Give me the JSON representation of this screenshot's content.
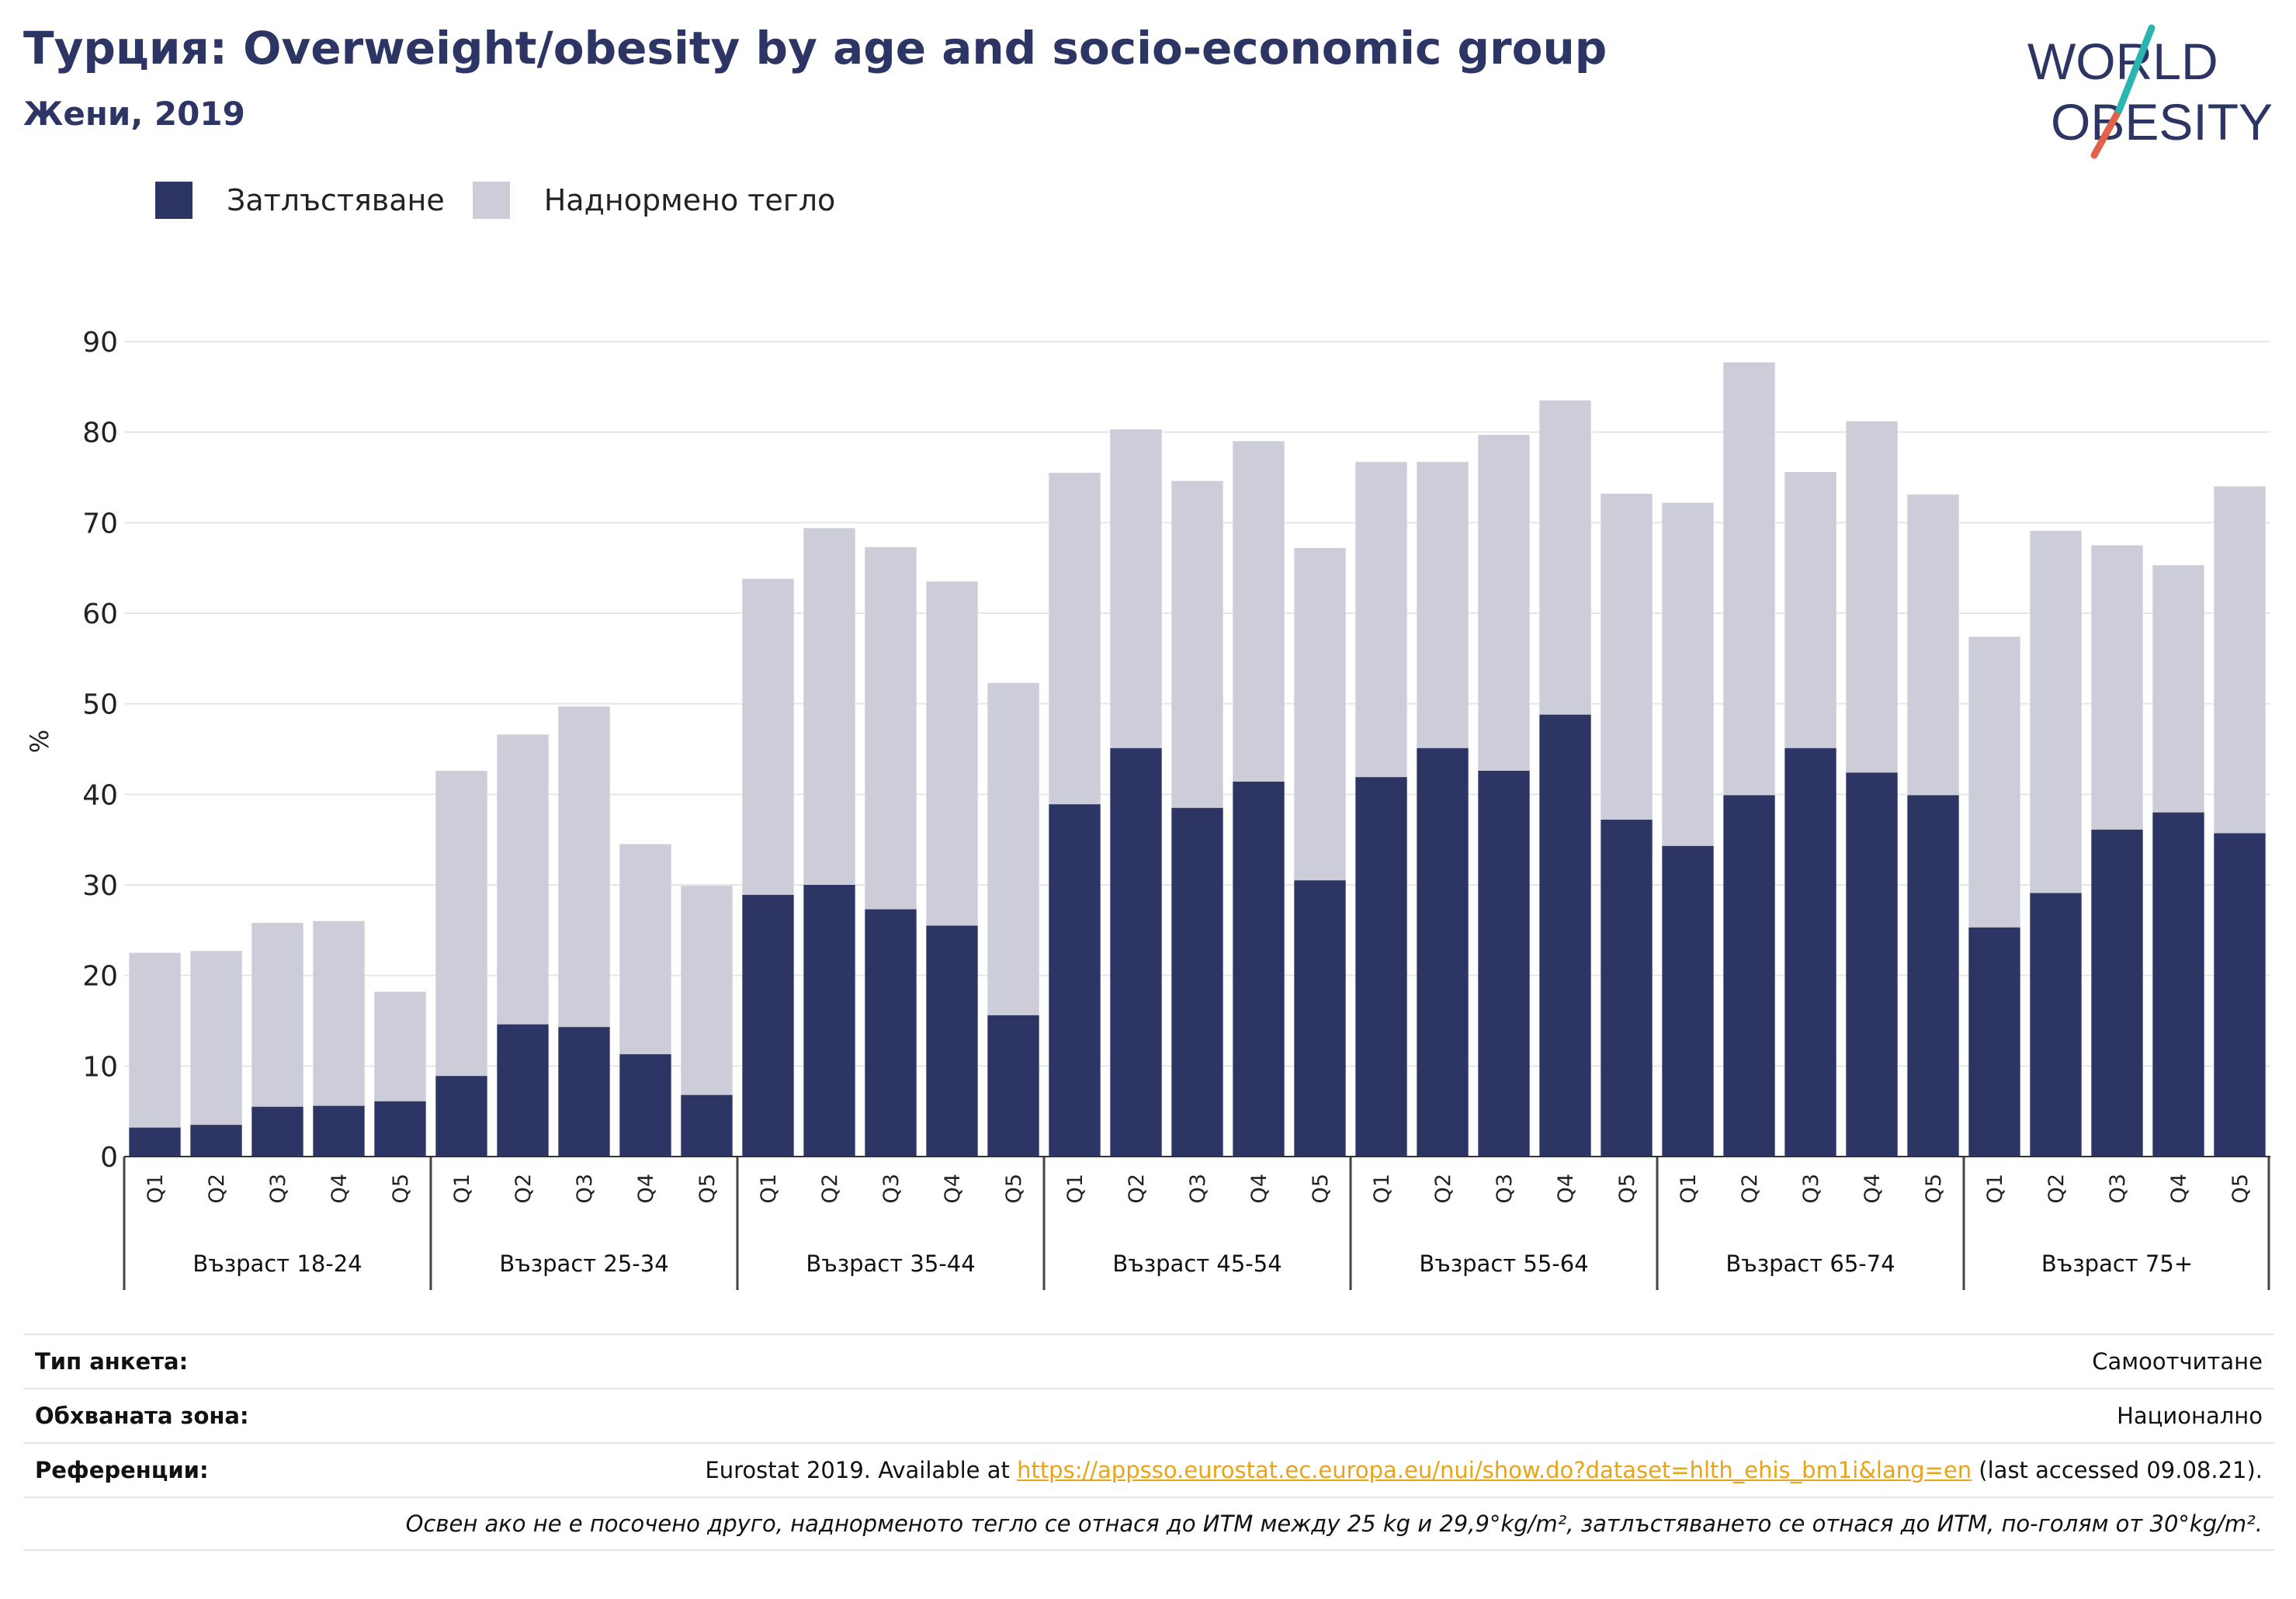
{
  "header": {
    "title": "Турция: Overweight/obesity by age and socio-economic group",
    "subtitle": "Жени, 2019"
  },
  "logo": {
    "line1": "WORLD",
    "line2": "OBESITY"
  },
  "colors": {
    "obesity": "#2c3563",
    "overweight": "#cccdd8",
    "accent_teal": "#2bb5b1",
    "accent_red": "#e2614a",
    "link": "#e8a317"
  },
  "legend": [
    {
      "label": "Затлъстяване",
      "color": "#2c3563"
    },
    {
      "label": "Наднормено тегло",
      "color": "#cccdd8"
    }
  ],
  "chart_data": {
    "type": "bar",
    "stacked": true,
    "ylabel": "%",
    "ylim": [
      0,
      90
    ],
    "yticks": [
      0,
      10,
      20,
      30,
      40,
      50,
      60,
      70,
      80,
      90
    ],
    "grid": true,
    "legend_position": "top-left",
    "groups": [
      {
        "label": "Възраст 18-24",
        "categories": [
          "Q1",
          "Q2",
          "Q3",
          "Q4",
          "Q5"
        ]
      },
      {
        "label": "Възраст 25-34",
        "categories": [
          "Q1",
          "Q2",
          "Q3",
          "Q4",
          "Q5"
        ]
      },
      {
        "label": "Възраст 35-44",
        "categories": [
          "Q1",
          "Q2",
          "Q3",
          "Q4",
          "Q5"
        ]
      },
      {
        "label": "Възраст 45-54",
        "categories": [
          "Q1",
          "Q2",
          "Q3",
          "Q4",
          "Q5"
        ]
      },
      {
        "label": "Възраст 55-64",
        "categories": [
          "Q1",
          "Q2",
          "Q3",
          "Q4",
          "Q5"
        ]
      },
      {
        "label": "Възраст 65-74",
        "categories": [
          "Q1",
          "Q2",
          "Q3",
          "Q4",
          "Q5"
        ]
      },
      {
        "label": "Възраст 75+",
        "categories": [
          "Q1",
          "Q2",
          "Q3",
          "Q4",
          "Q5"
        ]
      }
    ],
    "series": [
      {
        "name": "Затлъстяване",
        "values": [
          3.2,
          3.5,
          5.5,
          5.6,
          6.1,
          8.9,
          14.6,
          14.3,
          11.3,
          6.8,
          28.9,
          30.0,
          27.3,
          25.5,
          15.6,
          38.9,
          45.1,
          38.5,
          41.4,
          30.5,
          41.9,
          45.1,
          42.6,
          48.8,
          37.2,
          34.3,
          39.9,
          45.1,
          42.4,
          39.9,
          25.3,
          29.1,
          36.1,
          38.0,
          35.7
        ]
      },
      {
        "name": "Наднормено тегло",
        "values": [
          19.3,
          19.2,
          20.3,
          20.4,
          12.1,
          33.7,
          32.0,
          35.4,
          23.2,
          23.1,
          34.9,
          39.4,
          40.0,
          38.0,
          36.7,
          36.6,
          35.2,
          36.1,
          37.6,
          36.7,
          34.8,
          31.6,
          37.1,
          34.7,
          36.0,
          37.9,
          47.8,
          30.5,
          38.8,
          33.2,
          32.1,
          40.0,
          31.4,
          27.3,
          38.3
        ]
      }
    ]
  },
  "footer": {
    "survey_type": {
      "label": "Тип анкета:",
      "value": "Самоотчитане"
    },
    "coverage": {
      "label": "Обхваната зона:",
      "value": "Национално"
    },
    "references": {
      "label": "Референции:",
      "prefix": "Eurostat 2019. Available at ",
      "link": "https://appsso.eurostat.ec.europa.eu/nui/show.do?dataset=hlth_ehis_bm1i&lang=en",
      "suffix": " (last accessed 09.08.21)."
    },
    "note": "Освен ако не е посочено друго, наднорменото тегло се отнася до ИТМ между 25 kg и 29,9°kg/m², затлъстяването се отнася до ИТМ, по-голям от 30°kg/m²."
  }
}
